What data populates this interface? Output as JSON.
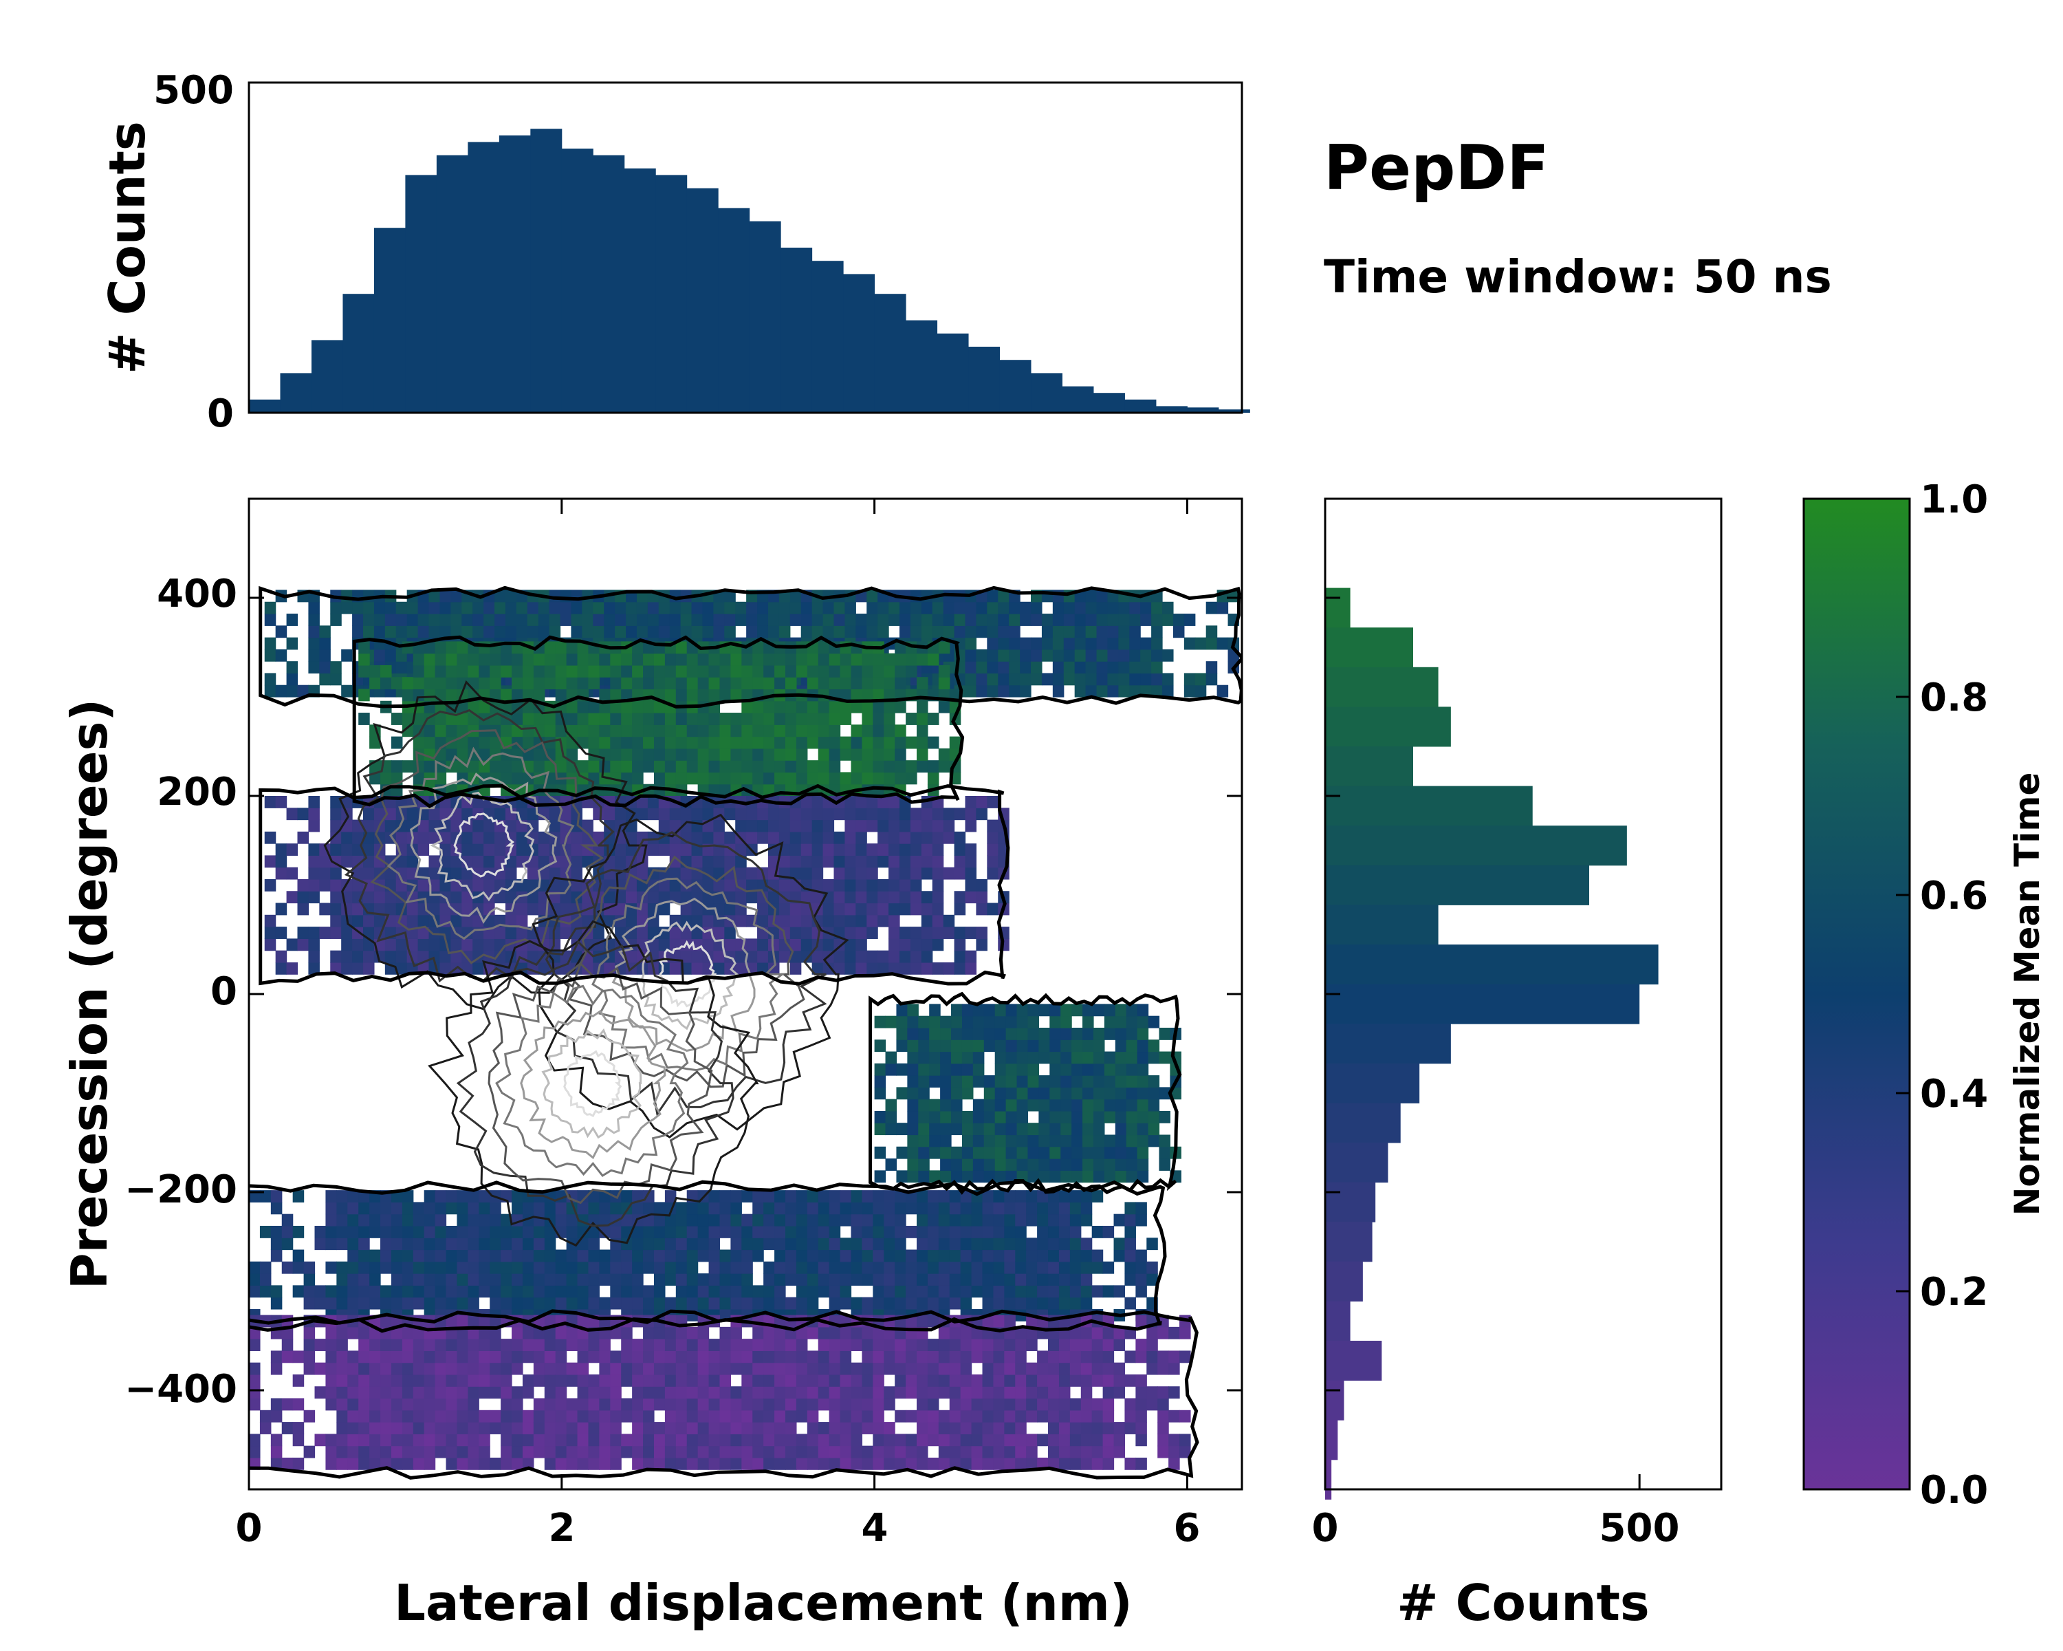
{
  "chart_data": [
    {
      "panel": "main-2d-histogram",
      "type": "heatmap",
      "xlabel": "Lateral displacement (nm)",
      "ylabel": "Precession (degrees)",
      "xlim": [
        0,
        6.35
      ],
      "ylim": [
        -500,
        500
      ],
      "xticks": [
        0,
        2,
        4,
        6
      ],
      "yticks": [
        400,
        200,
        0,
        -200,
        -400
      ],
      "xtick_labels": [
        "0",
        "2",
        "4",
        "6"
      ],
      "ytick_labels": [
        "400",
        "200",
        "0",
        "−200",
        "−400"
      ],
      "grid": false,
      "value_label": "Normalized Mean Time",
      "value_range": [
        0.0,
        1.0
      ],
      "contours": true,
      "regions": [
        {
          "x": [
            0.1,
            6.3
          ],
          "y": [
            300,
            400
          ],
          "mean_time": 0.55
        },
        {
          "x": [
            0.7,
            4.5
          ],
          "y": [
            200,
            350
          ],
          "mean_time": 0.75
        },
        {
          "x": [
            0.1,
            4.8
          ],
          "y": [
            20,
            200
          ],
          "mean_time": 0.3
        },
        {
          "x": [
            4.0,
            5.9
          ],
          "y": [
            -190,
            -10
          ],
          "mean_time": 0.6
        },
        {
          "x": [
            0.0,
            5.8
          ],
          "y": [
            -330,
            -200
          ],
          "mean_time": 0.45
        },
        {
          "x": [
            0.0,
            6.0
          ],
          "y": [
            -480,
            -330
          ],
          "mean_time": 0.12
        }
      ],
      "density_peaks": [
        {
          "x": 1.5,
          "y": 150
        },
        {
          "x": 2.8,
          "y": 20
        },
        {
          "x": 2.2,
          "y": -90
        }
      ]
    },
    {
      "panel": "top-marginal-histogram",
      "type": "bar",
      "ylabel": "# Counts",
      "ylim": [
        0,
        500
      ],
      "yticks": [
        0,
        500
      ],
      "ytick_labels": [
        "0",
        "500"
      ],
      "x": [
        0.1,
        0.3,
        0.5,
        0.7,
        0.9,
        1.1,
        1.3,
        1.5,
        1.7,
        1.9,
        2.1,
        2.3,
        2.5,
        2.7,
        2.9,
        3.1,
        3.3,
        3.5,
        3.7,
        3.9,
        4.1,
        4.3,
        4.5,
        4.7,
        4.9,
        5.1,
        5.3,
        5.5,
        5.7,
        5.9,
        6.1,
        6.3
      ],
      "values": [
        20,
        60,
        110,
        180,
        280,
        360,
        390,
        410,
        420,
        430,
        400,
        390,
        370,
        360,
        340,
        310,
        290,
        250,
        230,
        210,
        180,
        140,
        120,
        100,
        80,
        60,
        40,
        30,
        20,
        10,
        8,
        5
      ]
    },
    {
      "panel": "right-marginal-histogram",
      "type": "bar",
      "orientation": "horizontal",
      "xlabel": "# Counts",
      "xlim": [
        0,
        630
      ],
      "xticks": [
        0,
        500
      ],
      "xtick_labels": [
        "0",
        "500"
      ],
      "y": [
        390,
        350,
        310,
        270,
        230,
        190,
        150,
        110,
        70,
        30,
        -10,
        -50,
        -90,
        -130,
        -170,
        -210,
        -250,
        -290,
        -330,
        -370,
        -410,
        -450,
        -490
      ],
      "values": [
        40,
        140,
        180,
        200,
        140,
        330,
        480,
        420,
        180,
        530,
        500,
        200,
        150,
        120,
        100,
        80,
        75,
        60,
        40,
        90,
        30,
        20,
        10
      ]
    },
    {
      "panel": "colorbar",
      "type": "colorbar",
      "label": "Normalized Mean Time",
      "range": [
        0.0,
        1.0
      ],
      "ticks": [
        1.0,
        0.8,
        0.6,
        0.4,
        0.2,
        0.0
      ],
      "tick_labels": [
        "1.0",
        "0.8",
        "0.6",
        "0.4",
        "0.2",
        "0.0"
      ],
      "color_low": "#6a3399",
      "color_mid": "#0d3f6e",
      "color_high": "#228b22"
    }
  ],
  "title": "PepDF",
  "subtitle": "Time window: 50 ns"
}
